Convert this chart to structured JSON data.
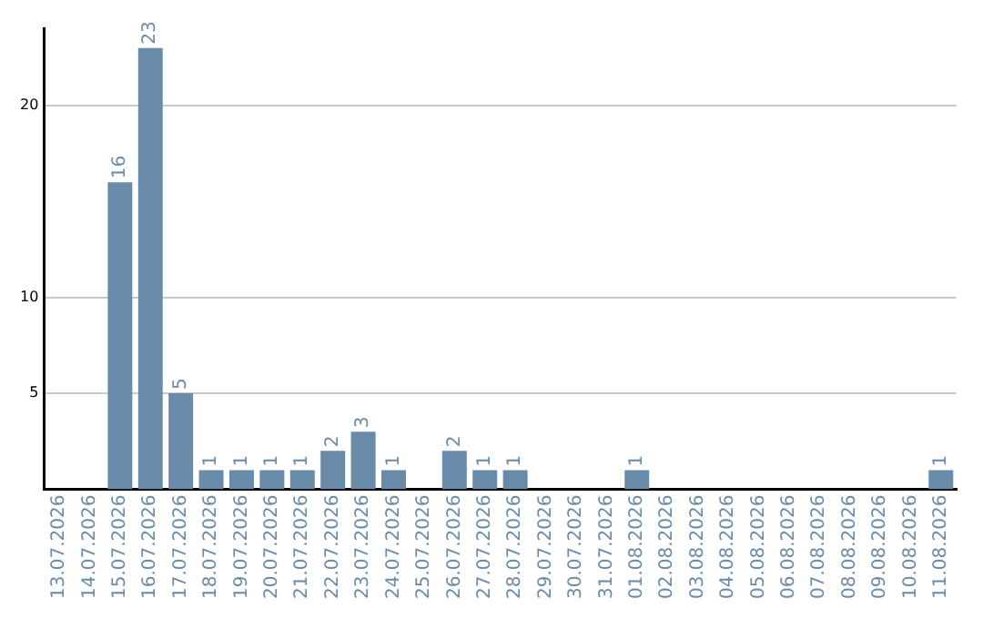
{
  "chart_data": {
    "type": "bar",
    "categories": [
      "13.07.2026",
      "14.07.2026",
      "15.07.2026",
      "16.07.2026",
      "17.07.2026",
      "18.07.2026",
      "19.07.2026",
      "20.07.2026",
      "21.07.2026",
      "22.07.2026",
      "23.07.2026",
      "24.07.2026",
      "25.07.2026",
      "26.07.2026",
      "27.07.2026",
      "28.07.2026",
      "29.07.2026",
      "30.07.2026",
      "31.07.2026",
      "01.08.2026",
      "02.08.2026",
      "03.08.2026",
      "04.08.2026",
      "05.08.2026",
      "06.08.2026",
      "07.08.2026",
      "08.08.2026",
      "09.08.2026",
      "10.08.2026",
      "11.08.2026"
    ],
    "values": [
      0,
      0,
      16,
      23,
      5,
      1,
      1,
      1,
      1,
      2,
      3,
      1,
      0,
      2,
      1,
      1,
      0,
      0,
      0,
      1,
      0,
      0,
      0,
      0,
      0,
      0,
      0,
      0,
      0,
      1
    ],
    "value_labels": [
      null,
      null,
      "16",
      "23",
      "5",
      "1",
      "1",
      "1",
      "1",
      "2",
      "3",
      "1",
      null,
      "2",
      "1",
      "1",
      null,
      null,
      null,
      "1",
      null,
      null,
      null,
      null,
      null,
      null,
      null,
      null,
      null,
      "1"
    ],
    "color": "#6a8aaa",
    "ylim": [
      0,
      24
    ],
    "yticks": [
      5,
      10,
      20
    ],
    "grid": "y",
    "legend": false
  }
}
